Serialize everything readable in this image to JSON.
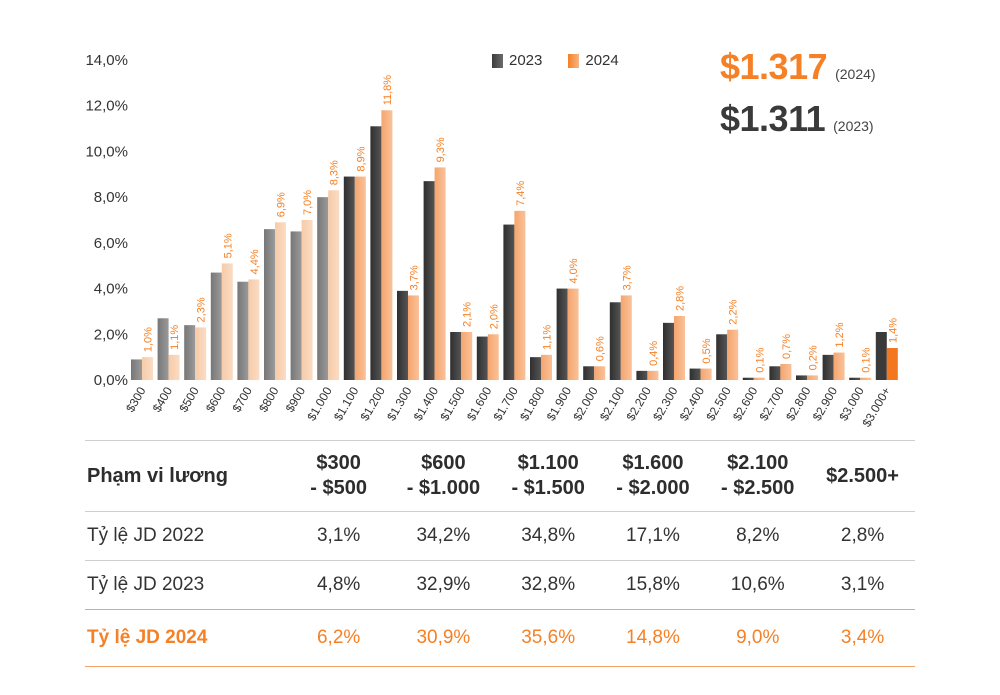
{
  "colors": {
    "y2023": "#3d3d3d",
    "y2024": "#f4a36a",
    "accent": "#f58025",
    "grey_bar": "#8a8a8a",
    "last_2024": "#f37621"
  },
  "legend": {
    "label_2023": "2023",
    "label_2024": "2024"
  },
  "averages": [
    {
      "value": "$1.317",
      "year": "(2024)"
    },
    {
      "value": "$1.311",
      "year": "(2023)"
    }
  ],
  "chart_data": {
    "type": "bar",
    "title": "",
    "xlabel": "",
    "ylabel": "",
    "ylim": [
      0,
      14
    ],
    "yticks": [
      "0,0%",
      "2,0%",
      "4,0%",
      "6,0%",
      "8,0%",
      "10,0%",
      "12,0%",
      "14,0%"
    ],
    "categories": [
      "$300",
      "$400",
      "$500",
      "$600",
      "$700",
      "$800",
      "$900",
      "$1.000",
      "$1.100",
      "$1.200",
      "$1.300",
      "$1.400",
      "$1.500",
      "$1.600",
      "$1.700",
      "$1.800",
      "$1.900",
      "$2.000",
      "$2.100",
      "$2.200",
      "$2.300",
      "$2.400",
      "$2.500",
      "$2.600",
      "$2.700",
      "$2.800",
      "$2.900",
      "$3.000",
      "$3.000+"
    ],
    "series": [
      {
        "name": "2023",
        "values": [
          0.9,
          2.7,
          2.4,
          4.7,
          4.3,
          6.6,
          6.5,
          8.0,
          8.9,
          11.1,
          3.9,
          8.7,
          2.1,
          1.9,
          6.8,
          1.0,
          4.0,
          0.6,
          3.4,
          0.4,
          2.5,
          0.5,
          2.0,
          0.1,
          0.6,
          0.2,
          1.1,
          0.1,
          2.1
        ]
      },
      {
        "name": "2024",
        "values": [
          1.0,
          1.1,
          2.3,
          5.1,
          4.4,
          6.9,
          7.0,
          8.3,
          8.9,
          11.8,
          3.7,
          9.3,
          2.1,
          2.0,
          7.4,
          1.1,
          4.0,
          0.6,
          3.7,
          0.4,
          2.8,
          0.5,
          2.2,
          0.1,
          0.7,
          0.2,
          1.2,
          0.1,
          1.4
        ],
        "labels": [
          "1,0%",
          "1,1%",
          "2,3%",
          "5,1%",
          "4,4%",
          "6,9%",
          "7,0%",
          "8,3%",
          "8,9%",
          "11,8%",
          "3,7%",
          "9,3%",
          "2,1%",
          "2,0%",
          "7,4%",
          "1,1%",
          "4,0%",
          "0,6%",
          "3,7%",
          "0,4%",
          "2,8%",
          "0,5%",
          "2,2%",
          "0,1%",
          "0,7%",
          "0,2%",
          "1,2%",
          "0,1%",
          "1,4%"
        ]
      }
    ]
  },
  "table": {
    "header_label": "Phạm vi lương",
    "columns": [
      {
        "line1": "$300",
        "line2": "- $500"
      },
      {
        "line1": "$600",
        "line2": "- $1.000"
      },
      {
        "line1": "$1.100",
        "line2": "- $1.500"
      },
      {
        "line1": "$1.600",
        "line2": "- $2.000"
      },
      {
        "line1": "$2.100",
        "line2": "- $2.500"
      },
      {
        "line1": "$2.500+",
        "line2": ""
      }
    ],
    "rows": [
      {
        "label": "Tỷ lệ JD 2022",
        "values": [
          "3,1%",
          "34,2%",
          "34,8%",
          "17,1%",
          "8,2%",
          "2,8%"
        ]
      },
      {
        "label": "Tỷ lệ JD 2023",
        "values": [
          "4,8%",
          "32,9%",
          "32,8%",
          "15,8%",
          "10,6%",
          "3,1%"
        ]
      },
      {
        "label": "Tỷ lệ JD 2024",
        "values": [
          "6,2%",
          "30,9%",
          "35,6%",
          "14,8%",
          "9,0%",
          "3,4%"
        ]
      }
    ]
  }
}
